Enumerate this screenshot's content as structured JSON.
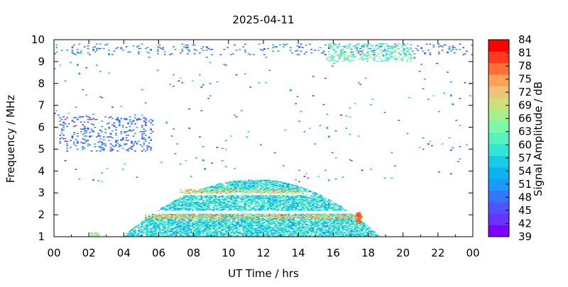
{
  "chart_data": {
    "type": "heatmap",
    "title": "2025-04-11",
    "xlabel": "UT Time / hrs",
    "ylabel": "Frequency / MHz",
    "colorbar_label": "Signal Amplitude / dB",
    "x_range": [
      0,
      24
    ],
    "y_range": [
      1,
      10
    ],
    "x_ticks": [
      "00",
      "02",
      "04",
      "06",
      "08",
      "10",
      "12",
      "14",
      "16",
      "18",
      "20",
      "22",
      "00"
    ],
    "y_ticks": [
      "1",
      "2",
      "3",
      "4",
      "5",
      "6",
      "7",
      "8",
      "9",
      "10"
    ],
    "colorbar_range": [
      39,
      84
    ],
    "colorbar_ticks": [
      "39",
      "42",
      "45",
      "48",
      "51",
      "54",
      "57",
      "60",
      "63",
      "66",
      "69",
      "72",
      "75",
      "78",
      "81",
      "84"
    ],
    "colorbar_colors": [
      "#7f00ff",
      "#6633ff",
      "#4c55ff",
      "#3377ff",
      "#1a99ff",
      "#0ab4f0",
      "#19cce6",
      "#33e6d4",
      "#55f4be",
      "#7cf9a8",
      "#a5f08c",
      "#cde07a",
      "#eec27a",
      "#ffa255",
      "#ff7038",
      "#ff3a1e",
      "#ff0000"
    ],
    "regions": [
      {
        "name": "main daytime echo dome",
        "time_start": 3.9,
        "time_end": 18.6,
        "freq_min": 1.0,
        "freq_max_peak": 3.6,
        "peak_time": 11.5,
        "typical_db": 58
      },
      {
        "name": "strong band near 2 MHz",
        "time_start": 5.2,
        "time_end": 17.6,
        "freq": 1.9,
        "typical_db": 72
      },
      {
        "name": "strong band near 3 MHz",
        "time_start": 7.2,
        "time_end": 14.2,
        "freq": 3.05,
        "typical_db": 70
      },
      {
        "name": "edge enhancement",
        "time_start": 17.3,
        "time_end": 17.6,
        "freq_min": 1.6,
        "freq_max": 2.1,
        "typical_db": 78
      },
      {
        "name": "early echo patch",
        "time_start": 2.1,
        "time_end": 2.6,
        "freq_min": 1.0,
        "freq_max": 1.2,
        "typical_db": 66
      },
      {
        "name": "night scatter 5-6.5 MHz",
        "time_start": 0.3,
        "time_end": 5.6,
        "freq_min": 4.9,
        "freq_max": 6.5,
        "typical_db": 48
      },
      {
        "name": "top scatter band",
        "time_start": 0.0,
        "time_end": 24.0,
        "freq_min": 9.3,
        "freq_max": 9.8,
        "typical_db": 49
      },
      {
        "name": "late scatter 9-9.8 MHz",
        "time_start": 15.6,
        "time_end": 20.5,
        "freq_min": 9.0,
        "freq_max": 9.8,
        "typical_db": 62
      }
    ]
  }
}
